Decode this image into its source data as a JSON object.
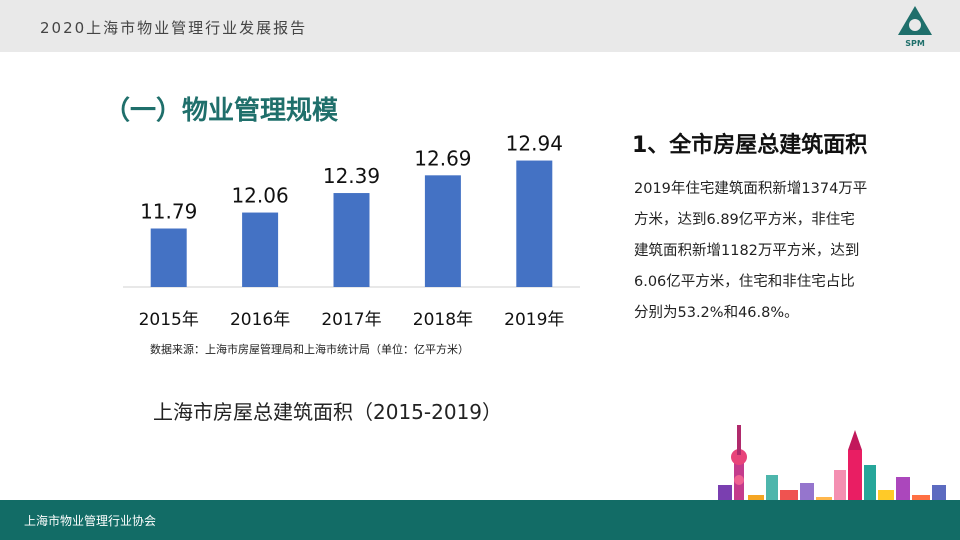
{
  "header": {
    "report_title": "2020上海市物业管理行业发展报告",
    "logo_text": "SPM"
  },
  "section_title": "（一）物业管理规模",
  "chart_data": {
    "type": "bar",
    "categories": [
      "2015年",
      "2016年",
      "2017年",
      "2018年",
      "2019年"
    ],
    "values": [
      11.79,
      12.06,
      12.39,
      12.69,
      12.94
    ],
    "data_labels": [
      "11.79",
      "12.06",
      "12.39",
      "12.69",
      "12.94"
    ],
    "bar_color": "#4472c4",
    "ylim": [
      10.8,
      13.0
    ],
    "grid": false,
    "title": "上海市房屋总建筑面积（2015-2019）",
    "source": "数据来源：上海市房屋管理局和上海市统计局（单位：亿平方米）"
  },
  "right_panel": {
    "title": "1、全市房屋总建筑面积",
    "lines": [
      "2019年住宅建筑面积新增1374万平",
      "方米，达到6.89亿平方米，非住宅",
      "建筑面积新增1182万平方米，达到",
      "6.06亿平方米，住宅和非住宅占比",
      "分别为53.2%和46.8%。"
    ]
  },
  "footer": {
    "org": "上海市物业管理行业协会"
  },
  "colors": {
    "accent": "#1f6f6b",
    "footer": "#126c66",
    "topbar": "#e9e9e9"
  }
}
